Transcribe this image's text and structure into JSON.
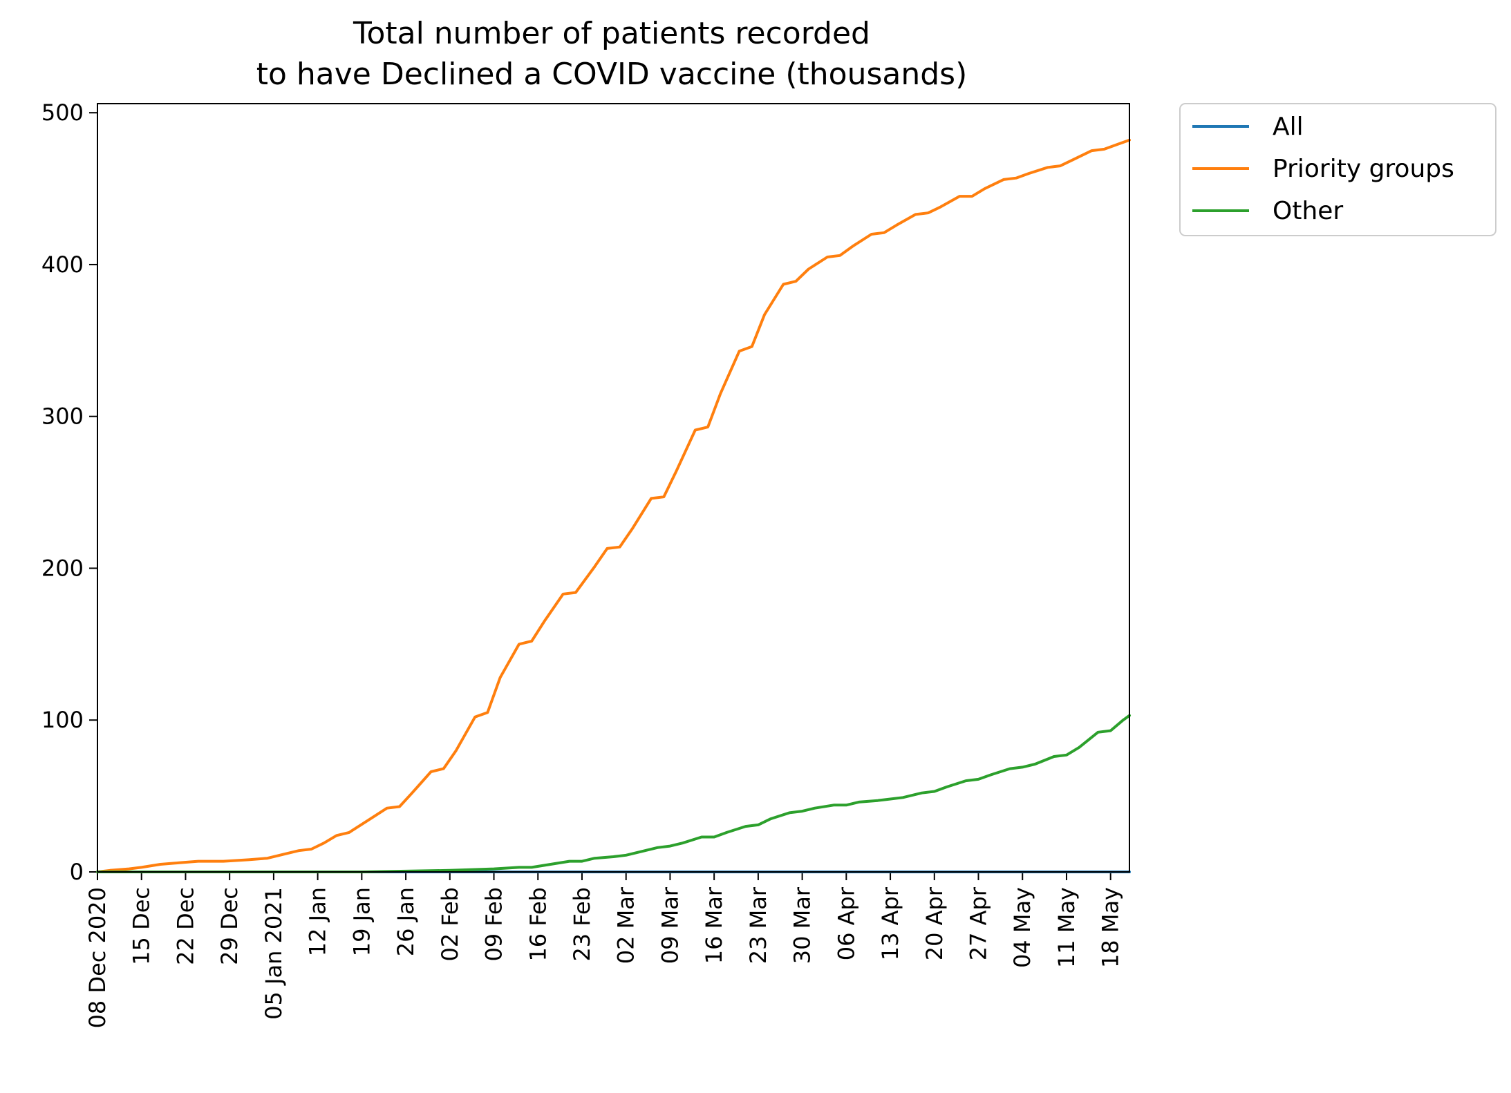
{
  "chart_data": {
    "type": "line",
    "title": [
      "Total number of patients recorded",
      "to have Declined a COVID vaccine (thousands)"
    ],
    "xlabel": "",
    "ylabel": "",
    "x_start": "2020-12-08",
    "x_end": "2021-05-21",
    "ylim": [
      0,
      506
    ],
    "yticks": [
      0,
      100,
      200,
      300,
      400,
      500
    ],
    "xticks": [
      {
        "date": "2020-12-08",
        "label": "08 Dec 2020"
      },
      {
        "date": "2020-12-15",
        "label": "15 Dec"
      },
      {
        "date": "2020-12-22",
        "label": "22 Dec"
      },
      {
        "date": "2020-12-29",
        "label": "29 Dec"
      },
      {
        "date": "2021-01-05",
        "label": "05 Jan 2021"
      },
      {
        "date": "2021-01-12",
        "label": "12 Jan"
      },
      {
        "date": "2021-01-19",
        "label": "19 Jan"
      },
      {
        "date": "2021-01-26",
        "label": "26 Jan"
      },
      {
        "date": "2021-02-02",
        "label": "02 Feb"
      },
      {
        "date": "2021-02-09",
        "label": "09 Feb"
      },
      {
        "date": "2021-02-16",
        "label": "16 Feb"
      },
      {
        "date": "2021-02-23",
        "label": "23 Feb"
      },
      {
        "date": "2021-03-02",
        "label": "02 Mar"
      },
      {
        "date": "2021-03-09",
        "label": "09 Mar"
      },
      {
        "date": "2021-03-16",
        "label": "16 Mar"
      },
      {
        "date": "2021-03-23",
        "label": "23 Mar"
      },
      {
        "date": "2021-03-30",
        "label": "30 Mar"
      },
      {
        "date": "2021-04-06",
        "label": "06 Apr"
      },
      {
        "date": "2021-04-13",
        "label": "13 Apr"
      },
      {
        "date": "2021-04-20",
        "label": "20 Apr"
      },
      {
        "date": "2021-04-27",
        "label": "27 Apr"
      },
      {
        "date": "2021-05-04",
        "label": "04 May"
      },
      {
        "date": "2021-05-11",
        "label": "11 May"
      },
      {
        "date": "2021-05-18",
        "label": "18 May"
      }
    ],
    "grid": false,
    "legend_position": "outside-top-right",
    "series": [
      {
        "name": "All",
        "color": "#1f77b4",
        "points": [
          [
            "2020-12-08",
            0
          ],
          [
            "2021-05-21",
            0
          ]
        ]
      },
      {
        "name": "Priority groups",
        "color": "#ff7f0e",
        "points": [
          [
            "2020-12-08",
            0
          ],
          [
            "2020-12-10",
            1
          ],
          [
            "2020-12-13",
            2
          ],
          [
            "2020-12-15",
            3
          ],
          [
            "2020-12-18",
            5
          ],
          [
            "2020-12-21",
            6
          ],
          [
            "2020-12-24",
            7
          ],
          [
            "2020-12-28",
            7
          ],
          [
            "2021-01-01",
            8
          ],
          [
            "2021-01-04",
            9
          ],
          [
            "2021-01-07",
            12
          ],
          [
            "2021-01-09",
            14
          ],
          [
            "2021-01-11",
            15
          ],
          [
            "2021-01-13",
            19
          ],
          [
            "2021-01-15",
            24
          ],
          [
            "2021-01-17",
            26
          ],
          [
            "2021-01-20",
            34
          ],
          [
            "2021-01-23",
            42
          ],
          [
            "2021-01-25",
            43
          ],
          [
            "2021-01-27",
            52
          ],
          [
            "2021-01-30",
            66
          ],
          [
            "2021-02-01",
            68
          ],
          [
            "2021-02-03",
            80
          ],
          [
            "2021-02-06",
            102
          ],
          [
            "2021-02-08",
            105
          ],
          [
            "2021-02-10",
            128
          ],
          [
            "2021-02-13",
            150
          ],
          [
            "2021-02-15",
            152
          ],
          [
            "2021-02-17",
            165
          ],
          [
            "2021-02-20",
            183
          ],
          [
            "2021-02-22",
            184
          ],
          [
            "2021-02-25",
            201
          ],
          [
            "2021-02-27",
            213
          ],
          [
            "2021-03-01",
            214
          ],
          [
            "2021-03-03",
            226
          ],
          [
            "2021-03-06",
            246
          ],
          [
            "2021-03-08",
            247
          ],
          [
            "2021-03-10",
            264
          ],
          [
            "2021-03-13",
            291
          ],
          [
            "2021-03-15",
            293
          ],
          [
            "2021-03-17",
            315
          ],
          [
            "2021-03-20",
            343
          ],
          [
            "2021-03-22",
            346
          ],
          [
            "2021-03-24",
            367
          ],
          [
            "2021-03-27",
            387
          ],
          [
            "2021-03-29",
            389
          ],
          [
            "2021-03-31",
            397
          ],
          [
            "2021-04-03",
            405
          ],
          [
            "2021-04-05",
            406
          ],
          [
            "2021-04-07",
            412
          ],
          [
            "2021-04-10",
            420
          ],
          [
            "2021-04-12",
            421
          ],
          [
            "2021-04-14",
            426
          ],
          [
            "2021-04-17",
            433
          ],
          [
            "2021-04-19",
            434
          ],
          [
            "2021-04-21",
            438
          ],
          [
            "2021-04-24",
            445
          ],
          [
            "2021-04-26",
            445
          ],
          [
            "2021-04-28",
            450
          ],
          [
            "2021-05-01",
            456
          ],
          [
            "2021-05-03",
            457
          ],
          [
            "2021-05-05",
            460
          ],
          [
            "2021-05-08",
            464
          ],
          [
            "2021-05-10",
            465
          ],
          [
            "2021-05-12",
            469
          ],
          [
            "2021-05-15",
            475
          ],
          [
            "2021-05-17",
            476
          ],
          [
            "2021-05-19",
            479
          ],
          [
            "2021-05-21",
            482
          ]
        ]
      },
      {
        "name": "Other",
        "color": "#2ca02c",
        "points": [
          [
            "2020-12-08",
            0
          ],
          [
            "2021-01-05",
            0
          ],
          [
            "2021-01-19",
            0
          ],
          [
            "2021-02-02",
            1
          ],
          [
            "2021-02-09",
            2
          ],
          [
            "2021-02-13",
            3
          ],
          [
            "2021-02-15",
            3
          ],
          [
            "2021-02-18",
            5
          ],
          [
            "2021-02-21",
            7
          ],
          [
            "2021-02-23",
            7
          ],
          [
            "2021-02-25",
            9
          ],
          [
            "2021-02-28",
            10
          ],
          [
            "2021-03-02",
            11
          ],
          [
            "2021-03-04",
            13
          ],
          [
            "2021-03-07",
            16
          ],
          [
            "2021-03-09",
            17
          ],
          [
            "2021-03-11",
            19
          ],
          [
            "2021-03-14",
            23
          ],
          [
            "2021-03-16",
            23
          ],
          [
            "2021-03-18",
            26
          ],
          [
            "2021-03-21",
            30
          ],
          [
            "2021-03-23",
            31
          ],
          [
            "2021-03-25",
            35
          ],
          [
            "2021-03-28",
            39
          ],
          [
            "2021-03-30",
            40
          ],
          [
            "2021-04-01",
            42
          ],
          [
            "2021-04-04",
            44
          ],
          [
            "2021-04-06",
            44
          ],
          [
            "2021-04-08",
            46
          ],
          [
            "2021-04-11",
            47
          ],
          [
            "2021-04-13",
            48
          ],
          [
            "2021-04-15",
            49
          ],
          [
            "2021-04-18",
            52
          ],
          [
            "2021-04-20",
            53
          ],
          [
            "2021-04-22",
            56
          ],
          [
            "2021-04-25",
            60
          ],
          [
            "2021-04-27",
            61
          ],
          [
            "2021-04-29",
            64
          ],
          [
            "2021-05-02",
            68
          ],
          [
            "2021-05-04",
            69
          ],
          [
            "2021-05-06",
            71
          ],
          [
            "2021-05-09",
            76
          ],
          [
            "2021-05-11",
            77
          ],
          [
            "2021-05-13",
            82
          ],
          [
            "2021-05-16",
            92
          ],
          [
            "2021-05-18",
            93
          ],
          [
            "2021-05-20",
            100
          ],
          [
            "2021-05-21",
            103
          ]
        ]
      }
    ]
  }
}
